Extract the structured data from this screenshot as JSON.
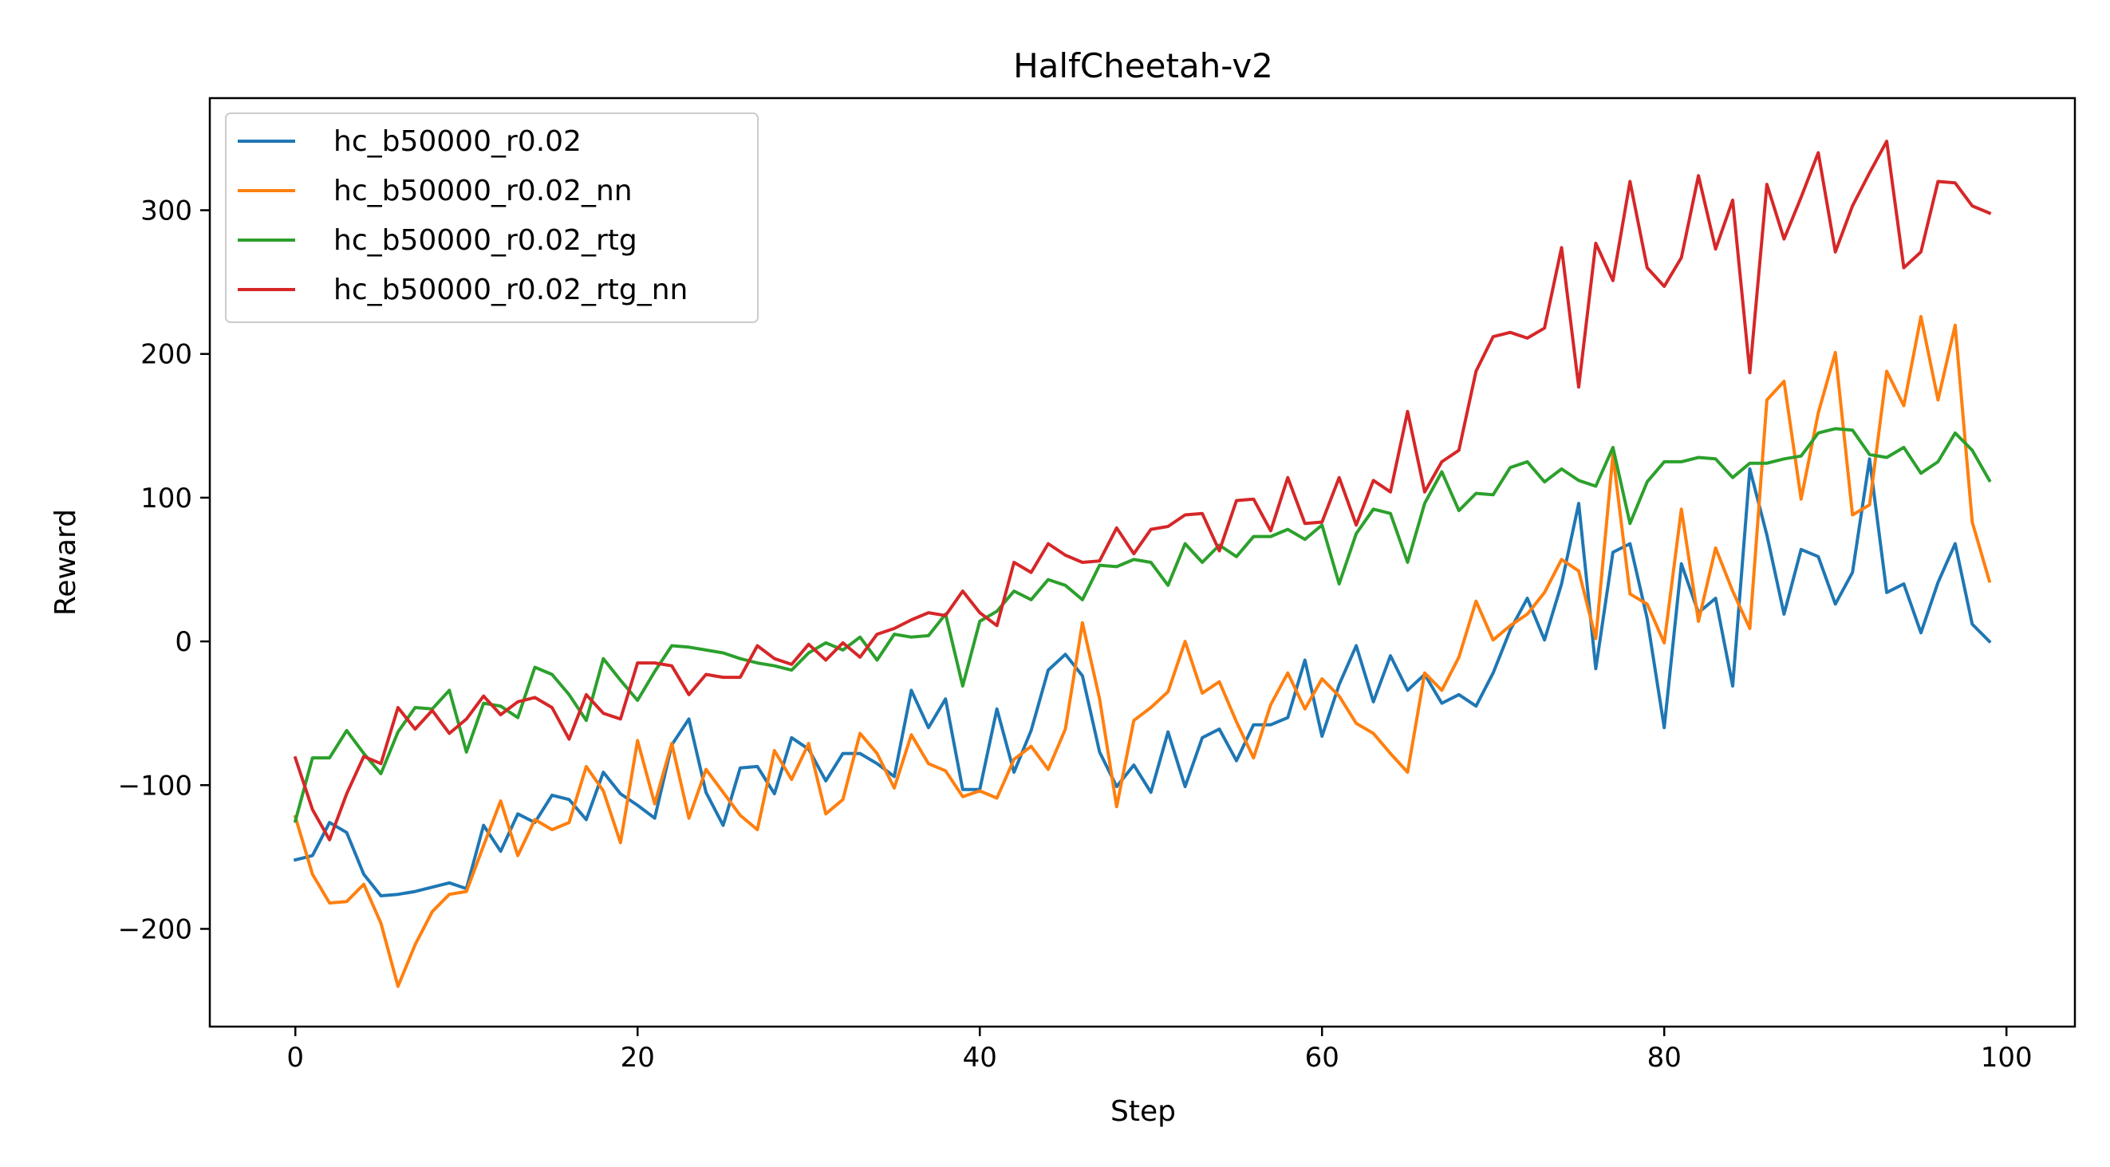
{
  "chart_data": {
    "type": "line",
    "title": "HalfCheetah-v2",
    "xlabel": "Step",
    "ylabel": "Reward",
    "xlim": [
      -5,
      104
    ],
    "ylim": [
      -268,
      378
    ],
    "xticks": [
      0,
      20,
      40,
      60,
      80,
      100
    ],
    "yticks": [
      -200,
      -100,
      0,
      100,
      200,
      300
    ],
    "ytick_labels": [
      "−200",
      "−100",
      "0",
      "100",
      "200",
      "300"
    ],
    "legend_position": "top-left",
    "grid": false,
    "series": [
      {
        "name": "hc_b50000_r0.02",
        "color": "#1f77b4",
        "values": [
          -152,
          -149,
          -126,
          -133,
          -162,
          -177,
          -176,
          -174,
          -171,
          -168,
          -172,
          -128,
          -146,
          -120,
          -126,
          -107,
          -110,
          -124,
          -91,
          -106,
          -114,
          -123,
          -72,
          -54,
          -105,
          -128,
          -88,
          -87,
          -106,
          -67,
          -75,
          -97,
          -78,
          -78,
          -85,
          -94,
          -34,
          -60,
          -40,
          -103,
          -103,
          -47,
          -91,
          -62,
          -20,
          -9,
          -24,
          -77,
          -101,
          -86,
          -105,
          -63,
          -101,
          -67,
          -61,
          -83,
          -58,
          -58,
          -53,
          -13,
          -66,
          -30,
          -3,
          -42,
          -10,
          -34,
          -23,
          -43,
          -37,
          -45,
          -22,
          8,
          30,
          1,
          40,
          96,
          -19,
          62,
          68,
          16,
          -60,
          54,
          20,
          30,
          -31,
          120,
          74,
          19,
          64,
          59,
          26,
          48,
          127,
          34,
          40,
          6,
          41,
          68,
          12,
          0
        ]
      },
      {
        "name": "hc_b50000_r0.02_nn",
        "color": "#ff7f0e",
        "values": [
          -122,
          -162,
          -182,
          -181,
          -169,
          -196,
          -240,
          -211,
          -188,
          -176,
          -174,
          -142,
          -111,
          -149,
          -124,
          -131,
          -126,
          -87,
          -104,
          -140,
          -69,
          -113,
          -71,
          -123,
          -89,
          -105,
          -121,
          -131,
          -76,
          -96,
          -71,
          -120,
          -110,
          -64,
          -78,
          -102,
          -65,
          -85,
          -90,
          -108,
          -104,
          -109,
          -82,
          -73,
          -89,
          -61,
          13,
          -40,
          -115,
          -55,
          -46,
          -35,
          0,
          -36,
          -28,
          -56,
          -81,
          -44,
          -22,
          -47,
          -26,
          -38,
          -57,
          -64,
          -78,
          -91,
          -22,
          -34,
          -11,
          28,
          1,
          11,
          19,
          34,
          57,
          49,
          2,
          130,
          33,
          26,
          -1,
          92,
          14,
          65,
          35,
          9,
          168,
          181,
          99,
          159,
          201,
          88,
          95,
          188,
          164,
          226,
          168,
          220,
          83,
          42
        ]
      },
      {
        "name": "hc_b50000_r0.02_rtg",
        "color": "#2ca02c",
        "values": [
          -125,
          -81,
          -81,
          -62,
          -78,
          -92,
          -63,
          -46,
          -47,
          -34,
          -77,
          -43,
          -45,
          -53,
          -18,
          -23,
          -37,
          -55,
          -12,
          -27,
          -41,
          -21,
          -3,
          -4,
          -6,
          -8,
          -12,
          -15,
          -17,
          -20,
          -8,
          -1,
          -6,
          3,
          -13,
          5,
          3,
          4,
          19,
          -31,
          14,
          21,
          35,
          29,
          43,
          39,
          29,
          53,
          52,
          57,
          55,
          39,
          68,
          55,
          67,
          59,
          73,
          73,
          78,
          71,
          81,
          40,
          75,
          92,
          89,
          55,
          96,
          118,
          91,
          103,
          102,
          121,
          125,
          111,
          120,
          112,
          108,
          135,
          82,
          111,
          125,
          125,
          128,
          127,
          114,
          124,
          124,
          127,
          129,
          145,
          148,
          147,
          130,
          128,
          135,
          117,
          125,
          145,
          133,
          112
        ]
      },
      {
        "name": "hc_b50000_r0.02_rtg_nn",
        "color": "#d62728",
        "values": [
          -81,
          -117,
          -138,
          -106,
          -80,
          -85,
          -46,
          -61,
          -48,
          -64,
          -54,
          -38,
          -51,
          -42,
          -39,
          -46,
          -68,
          -37,
          -50,
          -54,
          -15,
          -15,
          -17,
          -37,
          -23,
          -25,
          -25,
          -3,
          -12,
          -16,
          -2,
          -13,
          -1,
          -11,
          5,
          9,
          15,
          20,
          18,
          35,
          20,
          11,
          55,
          48,
          68,
          60,
          55,
          56,
          79,
          61,
          78,
          80,
          88,
          89,
          63,
          98,
          99,
          77,
          114,
          82,
          83,
          114,
          81,
          112,
          104,
          160,
          104,
          125,
          133,
          188,
          212,
          215,
          211,
          218,
          274,
          177,
          277,
          251,
          320,
          260,
          247,
          267,
          324,
          273,
          307,
          187,
          318,
          280,
          309,
          340,
          271,
          303,
          326,
          348,
          260,
          271,
          320,
          319,
          303,
          298
        ]
      }
    ]
  }
}
